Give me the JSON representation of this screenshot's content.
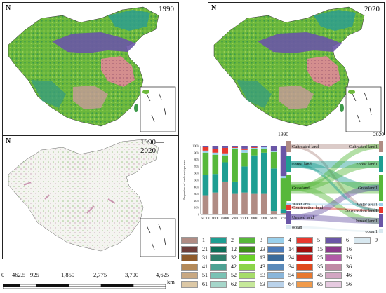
{
  "maps": {
    "map_1990": {
      "year": "1990",
      "north": "N"
    },
    "map_2020": {
      "year": "2020",
      "north": "N"
    },
    "map_change": {
      "year": "1990—2020",
      "north": "N"
    }
  },
  "scale_bar": {
    "labels": [
      "0",
      "462.5",
      "925",
      "1,850",
      "2,775",
      "3,700",
      "4,625"
    ],
    "unit": "km"
  },
  "chart_data": {
    "type": "bar",
    "stacked": true,
    "ylabel": "Proportion of land use type area",
    "ylim": [
      0,
      100
    ],
    "yticks": [
      "0",
      "10%",
      "20%",
      "30%",
      "40%",
      "50%",
      "60%",
      "70%",
      "80%",
      "90%",
      "100%"
    ],
    "categories": [
      "SLRB",
      "HRB",
      "SHRB",
      "YRB",
      "YZRB",
      "PRB",
      "SEB",
      "SWB",
      "CB"
    ],
    "series": [
      {
        "color": "#B08C84",
        "values": [
          28,
          32,
          48,
          30,
          32,
          30,
          30,
          5,
          2
        ]
      },
      {
        "color": "#1E9E92",
        "values": [
          30,
          27,
          28,
          18,
          38,
          56,
          60,
          62,
          6
        ]
      },
      {
        "color": "#57B83A",
        "values": [
          32,
          28,
          10,
          48,
          20,
          9,
          6,
          24,
          45
        ]
      },
      {
        "color": "#9AD0EC",
        "values": [
          3,
          3,
          3,
          1,
          4,
          2,
          2,
          1,
          3
        ]
      },
      {
        "color": "#E8382E",
        "values": [
          5,
          5,
          8,
          2,
          2,
          1,
          1,
          0,
          0
        ]
      },
      {
        "color": "#6A56A6",
        "values": [
          2,
          5,
          3,
          1,
          4,
          2,
          1,
          8,
          44
        ]
      }
    ]
  },
  "sankey": {
    "year_left": "1990",
    "year_right": "2020",
    "left_labels": [
      "Cultivated land",
      "Forest land",
      "Grassland",
      "Water area",
      "Construction land",
      "Unused land",
      "ocean"
    ],
    "right_labels": [
      "Cultivated land1",
      "Forest land1",
      "Grassland1",
      "Water area1",
      "Construction land1",
      "Unused land1",
      "ocean1"
    ],
    "colors": [
      "#B08C84",
      "#1E9E92",
      "#57B83A",
      "#9AD0EC",
      "#E8382E",
      "#6A56A6",
      "#D8E8F0"
    ]
  },
  "legend": {
    "rows": [
      [
        {
          "label": "1",
          "color": "#B08C84"
        },
        {
          "label": "2",
          "color": "#1E9E92"
        },
        {
          "label": "3",
          "color": "#57B83A"
        },
        {
          "label": "4",
          "color": "#9AD0EC"
        },
        {
          "label": "5",
          "color": "#E8382E"
        },
        {
          "label": "6",
          "color": "#6A56A6"
        },
        {
          "label": "9",
          "color": "#D8E8F0"
        }
      ],
      [
        {
          "label": "21",
          "color": "#6E3E3A"
        },
        {
          "label": "12",
          "color": "#0E6E58"
        },
        {
          "label": "23",
          "color": "#3E8E1A"
        },
        {
          "label": "14",
          "color": "#4B7AB8"
        },
        {
          "label": "15",
          "color": "#A00E0E"
        },
        {
          "label": "16",
          "color": "#8A3A8A"
        }
      ],
      [
        {
          "label": "31",
          "color": "#8E5A2A"
        },
        {
          "label": "32",
          "color": "#2E7E6A"
        },
        {
          "label": "13",
          "color": "#6AD02A"
        },
        {
          "label": "24",
          "color": "#3A6A9A"
        },
        {
          "label": "25",
          "color": "#C81E1E"
        },
        {
          "label": "26",
          "color": "#B05AA6"
        }
      ],
      [
        {
          "label": "41",
          "color": "#B48A5A"
        },
        {
          "label": "42",
          "color": "#4EA294"
        },
        {
          "label": "43",
          "color": "#8CD44A"
        },
        {
          "label": "34",
          "color": "#5A8ABA"
        },
        {
          "label": "35",
          "color": "#E04A1E"
        },
        {
          "label": "36",
          "color": "#C08AA6"
        }
      ],
      [
        {
          "label": "51",
          "color": "#C8A882"
        },
        {
          "label": "52",
          "color": "#7AC2B4"
        },
        {
          "label": "53",
          "color": "#A6DC6A"
        },
        {
          "label": "54",
          "color": "#8AB6DA"
        },
        {
          "label": "45",
          "color": "#E8782E"
        },
        {
          "label": "46",
          "color": "#D2A6C2"
        }
      ],
      [
        {
          "label": "61",
          "color": "#DCC8A6"
        },
        {
          "label": "62",
          "color": "#A6D6CA"
        },
        {
          "label": "63",
          "color": "#C6E89A"
        },
        {
          "label": "64",
          "color": "#BAD2EA"
        },
        {
          "label": "65",
          "color": "#F09A4A"
        },
        {
          "label": "56",
          "color": "#E6CAE0"
        }
      ]
    ]
  }
}
